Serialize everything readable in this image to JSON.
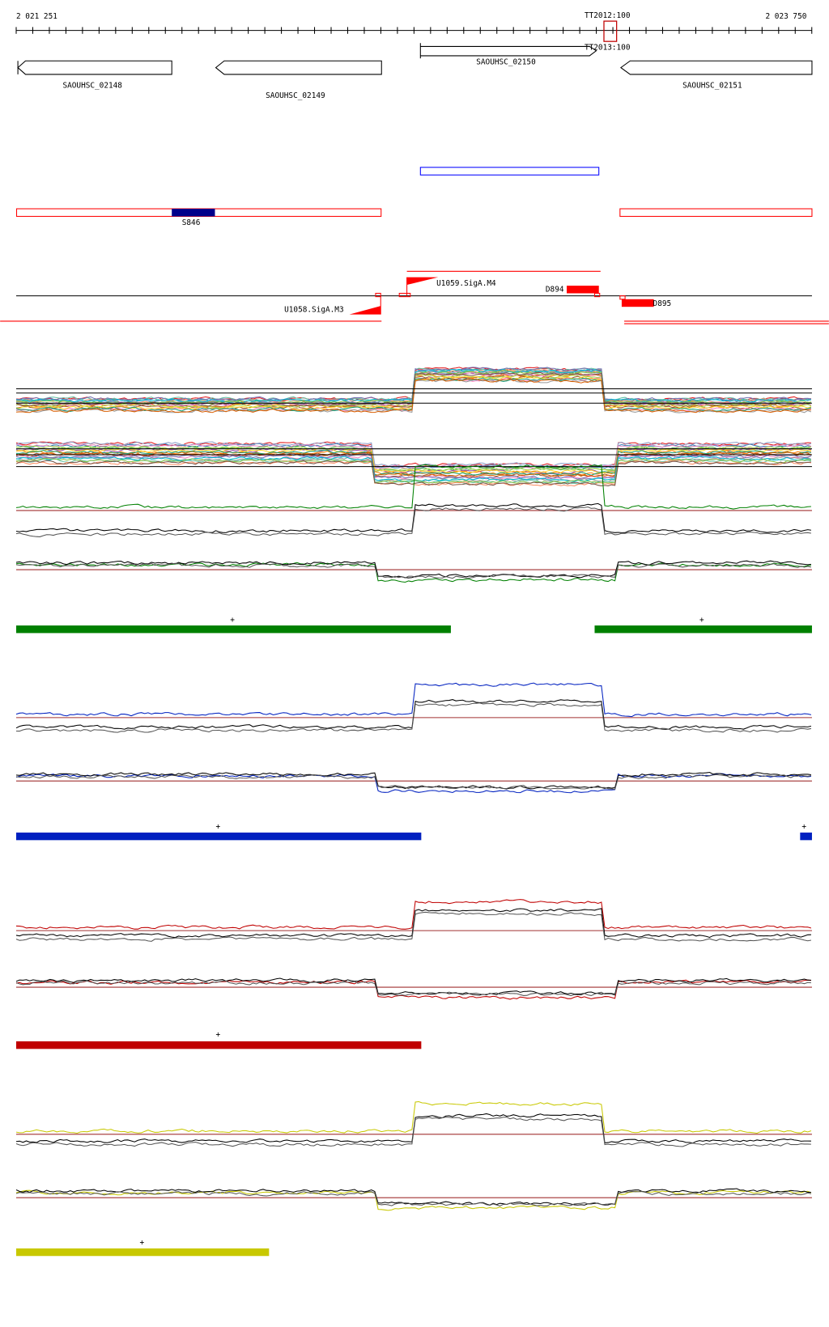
{
  "ruler": {
    "start_label": "2 021 251",
    "end_label": "2 023 750",
    "marker_top_label": "TT2012:100",
    "marker_top_label2": "TT2013:100",
    "marker_bottom_label": "TT2013:100"
  },
  "genes": [
    {
      "name": "SAOUHSC_02148",
      "strand": "-"
    },
    {
      "name": "SAOUHSC_02149",
      "strand": "-"
    },
    {
      "name": "SAOUHSC_02150",
      "strand": "+"
    },
    {
      "name": "SAOUHSC_02151",
      "strand": "-"
    }
  ],
  "segments": {
    "label": "S846"
  },
  "features": {
    "u1058": "U1058.SigA.M3",
    "u1059": "U1059.SigA.M4",
    "d894": "D894",
    "d895": "D895"
  },
  "panels": [
    {
      "color": "#008000",
      "plus": "+"
    },
    {
      "color": "#0020c0",
      "plus": "+"
    },
    {
      "color": "#c00000",
      "plus": "+"
    },
    {
      "color": "#c8c800",
      "plus": "+"
    }
  ],
  "colors": {
    "red": "#ff0000",
    "navy": "#00008b",
    "blue": "#0000ff"
  }
}
